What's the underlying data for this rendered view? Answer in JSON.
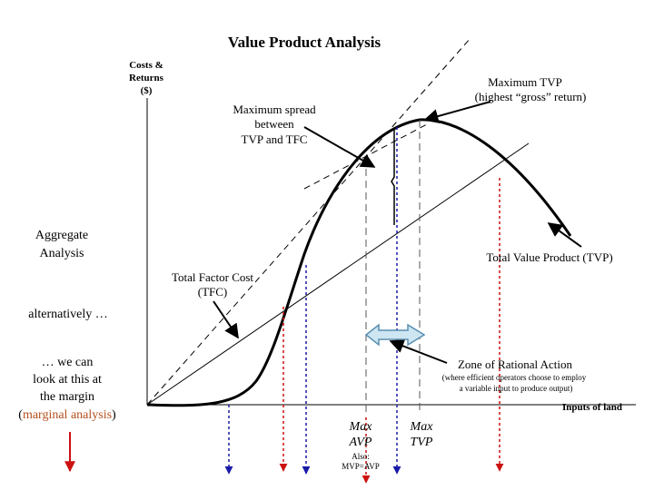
{
  "title": "Value Product Analysis",
  "y_axis": {
    "line1": "Costs &",
    "line2": "Returns",
    "line3": "($)"
  },
  "x_axis": {
    "label": "Inputs of land"
  },
  "annotations": {
    "max_tvp": {
      "line1": "Maximum TVP",
      "line2": "(highest “gross” return)"
    },
    "max_spread": {
      "line1": "Maximum spread",
      "line2": "between",
      "line3": "TVP and TFC"
    },
    "tvp": "Total Value Product (TVP)",
    "tfc": {
      "line1": "Total Factor Cost",
      "line2": "(TFC)"
    },
    "zone": {
      "title": "Zone of Rational Action",
      "note1": "(where efficient operators choose to employ",
      "note2": "a variable input to produce output)"
    },
    "max_avp": {
      "line1": "Max",
      "line2": "AVP"
    },
    "also": {
      "line1": "Also:",
      "line2": "MVP=AVP"
    },
    "max_tvp_axis": {
      "line1": "Max",
      "line2": "TVP"
    }
  },
  "side_text": {
    "aggregate": {
      "line1": "Aggregate",
      "line2": "Analysis"
    },
    "alternatively": "alternatively …",
    "margin": {
      "line1": "… we can",
      "line2": "look at this at",
      "line3": "the margin"
    },
    "marginal_open": "(",
    "marginal_word": "marginal analysis",
    "marginal_close": ")"
  },
  "colors": {
    "curve": "#000000",
    "red_line": "#cc1111",
    "blue_line": "#1a1aa8",
    "arrow_fill": "#cde6f2",
    "arrow_stroke": "#5a8fb0",
    "marginal_text": "#b5501c"
  },
  "icons": {
    "double_arrow": "double-headed-arrow-icon",
    "red_arrow": "down-arrow-icon"
  }
}
